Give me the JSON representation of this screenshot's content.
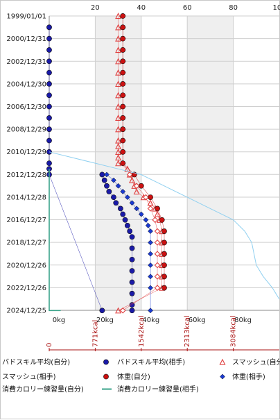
{
  "chart_data": {
    "type": "scatter",
    "title": "",
    "orientation": "dates-on-vertical-axis",
    "y_dates": [
      "1999/01/01",
      "2000/12/31",
      "2002/12/31",
      "2004/12/30",
      "2006/12/30",
      "2008/12/29",
      "2010/12/29",
      "2012/12/28",
      "2014/12/28",
      "2016/12/27",
      "2018/12/27",
      "2020/12/26",
      "2022/12/26",
      "2024/12/25"
    ],
    "top_axis": {
      "ticks": [
        "20",
        "40",
        "60",
        "80",
        "100"
      ],
      "range": [
        0,
        100
      ]
    },
    "kg_axis": {
      "ticks": [
        "0kg",
        "20kg",
        "40kg",
        "60kg",
        "80kg"
      ],
      "range": [
        0,
        100
      ]
    },
    "kcal_axis": {
      "ticks": [
        "0",
        "771kcal",
        "1542kcal",
        "2313kcal",
        "3084kcal"
      ]
    },
    "shaded_bands": [
      [
        20,
        40
      ],
      [
        60,
        80
      ]
    ],
    "series": [
      {
        "name": "バドスキル平均(自分)",
        "marker": "circle",
        "color": "#1a1aa8",
        "points": [
          [
            0,
            "2000/01"
          ],
          [
            0,
            "2001/01"
          ],
          [
            0,
            "2002/01"
          ],
          [
            0,
            "2003/01"
          ],
          [
            0,
            "2004/01"
          ],
          [
            0,
            "2005/01"
          ],
          [
            0,
            "2006/01"
          ],
          [
            0,
            "2007/01"
          ],
          [
            0,
            "2008/01"
          ],
          [
            0,
            "2009/01"
          ],
          [
            0,
            "2010/01"
          ],
          [
            0,
            "2011/01"
          ],
          [
            0,
            "2012/01"
          ],
          [
            0,
            "2012/07"
          ],
          [
            0,
            "2013/01"
          ],
          [
            23,
            "2025/01"
          ]
        ]
      },
      {
        "name": "バドスキル平均(相手)",
        "marker": "circle",
        "color": "#1a1aa8",
        "points": [
          [
            23,
            "2013/01"
          ],
          [
            24,
            "2013/07"
          ],
          [
            25,
            "2014/01"
          ],
          [
            26,
            "2014/07"
          ],
          [
            28,
            "2015/01"
          ],
          [
            29,
            "2015/07"
          ],
          [
            31,
            "2016/01"
          ],
          [
            32,
            "2016/07"
          ],
          [
            33,
            "2017/01"
          ],
          [
            34,
            "2017/07"
          ],
          [
            35,
            "2018/01"
          ],
          [
            36,
            "2018/07"
          ],
          [
            36,
            "2019/07"
          ],
          [
            36,
            "2020/07"
          ],
          [
            36,
            "2021/07"
          ],
          [
            36,
            "2022/07"
          ],
          [
            36,
            "2023/07"
          ],
          [
            36,
            "2024/07"
          ],
          [
            36,
            "2025/01"
          ]
        ]
      },
      {
        "name": "スマッシュ(自分)",
        "marker": "triangle",
        "color": "#e04040",
        "points": [
          [
            30,
            "1999/01"
          ],
          [
            30,
            "2000/01"
          ],
          [
            30,
            "2001/01"
          ],
          [
            30,
            "2002/01"
          ],
          [
            30,
            "2003/01"
          ],
          [
            30,
            "2004/01"
          ],
          [
            30,
            "2005/01"
          ],
          [
            30,
            "2006/01"
          ],
          [
            30,
            "2007/01"
          ],
          [
            30,
            "2008/01"
          ],
          [
            30,
            "2009/01"
          ],
          [
            30,
            "2010/01"
          ],
          [
            30,
            "2010/07"
          ],
          [
            30,
            "2011/01"
          ],
          [
            30,
            "2011/07"
          ],
          [
            30,
            "2012/01"
          ],
          [
            34,
            "2012/07"
          ],
          [
            35,
            "2013/01"
          ],
          [
            36,
            "2013/07"
          ],
          [
            37,
            "2014/01"
          ],
          [
            38,
            "2014/07"
          ],
          [
            41,
            "2015/01"
          ],
          [
            44,
            "2015/07"
          ],
          [
            46,
            "2016/01"
          ],
          [
            47,
            "2016/07"
          ],
          [
            48,
            "2017/01"
          ],
          [
            49,
            "2018/01"
          ],
          [
            49,
            "2019/01"
          ],
          [
            49,
            "2020/01"
          ],
          [
            49,
            "2021/01"
          ],
          [
            49,
            "2022/01"
          ],
          [
            49,
            "2023/01"
          ],
          [
            30,
            "2025/01"
          ]
        ]
      },
      {
        "name": "スマッシュ(相手)",
        "marker": "diamond-open",
        "color": "#e04040",
        "points": [
          [
            32,
            "1999/01"
          ],
          [
            32,
            "2000/01"
          ],
          [
            32,
            "2001/01"
          ],
          [
            32,
            "2002/01"
          ],
          [
            32,
            "2003/01"
          ],
          [
            32,
            "2004/01"
          ],
          [
            32,
            "2005/01"
          ],
          [
            32,
            "2006/01"
          ],
          [
            32,
            "2007/01"
          ],
          [
            32,
            "2008/01"
          ],
          [
            32,
            "2009/01"
          ],
          [
            32,
            "2010/01"
          ],
          [
            32,
            "2011/01"
          ],
          [
            32,
            "2012/01"
          ],
          [
            35,
            "2013/01"
          ],
          [
            38,
            "2014/01"
          ],
          [
            42,
            "2015/01"
          ],
          [
            44,
            "2016/01"
          ],
          [
            46,
            "2017/01"
          ],
          [
            47,
            "2018/01"
          ],
          [
            47,
            "2019/01"
          ],
          [
            47,
            "2020/01"
          ],
          [
            47,
            "2021/01"
          ],
          [
            47,
            "2022/01"
          ],
          [
            47,
            "2023/01"
          ],
          [
            32,
            "2025/01"
          ]
        ]
      },
      {
        "name": "体重(自分)",
        "marker": "circle",
        "color": "#cc1111",
        "points": [
          [
            32,
            "1999/01"
          ],
          [
            32,
            "2000/01"
          ],
          [
            32,
            "2001/01"
          ],
          [
            32,
            "2002/01"
          ],
          [
            32,
            "2003/01"
          ],
          [
            32,
            "2004/01"
          ],
          [
            32,
            "2005/01"
          ],
          [
            32,
            "2006/01"
          ],
          [
            32,
            "2007/01"
          ],
          [
            32,
            "2008/01"
          ],
          [
            32,
            "2009/01"
          ],
          [
            32,
            "2010/01"
          ],
          [
            32,
            "2011/01"
          ],
          [
            32,
            "2012/01"
          ],
          [
            37,
            "2013/01"
          ],
          [
            40,
            "2014/01"
          ],
          [
            44,
            "2015/01"
          ],
          [
            47,
            "2016/01"
          ],
          [
            49,
            "2017/01"
          ],
          [
            50,
            "2018/01"
          ],
          [
            50,
            "2019/01"
          ],
          [
            50,
            "2020/01"
          ],
          [
            50,
            "2021/01"
          ],
          [
            50,
            "2022/01"
          ],
          [
            50,
            "2023/01"
          ]
        ]
      },
      {
        "name": "体重(相手)",
        "marker": "diamond",
        "color": "#1a3ad0",
        "points": [
          [
            25,
            "2013/01"
          ],
          [
            28,
            "2013/07"
          ],
          [
            30,
            "2014/01"
          ],
          [
            32,
            "2014/07"
          ],
          [
            34,
            "2015/01"
          ],
          [
            36,
            "2015/07"
          ],
          [
            38,
            "2016/01"
          ],
          [
            40,
            "2016/07"
          ],
          [
            42,
            "2017/01"
          ],
          [
            43,
            "2017/07"
          ],
          [
            44,
            "2018/01"
          ],
          [
            44,
            "2019/01"
          ],
          [
            44,
            "2020/01"
          ],
          [
            44,
            "2021/01"
          ],
          [
            44,
            "2022/01"
          ],
          [
            44,
            "2023/01"
          ],
          [
            44,
            "2025/01"
          ]
        ]
      },
      {
        "name": "消費カロリー練習量(自分)",
        "marker": "line",
        "color": "#90d0f0",
        "points": [
          [
            0,
            "2011/01"
          ],
          [
            10,
            "2011/07"
          ],
          [
            20,
            "2012/01"
          ],
          [
            30,
            "2012/07"
          ],
          [
            40,
            "2013/01"
          ],
          [
            50,
            "2014/01"
          ],
          [
            60,
            "2015/01"
          ],
          [
            70,
            "2016/01"
          ],
          [
            80,
            "2017/01"
          ],
          [
            85,
            "2018/01"
          ],
          [
            88,
            "2019/01"
          ],
          [
            90,
            "2021/01"
          ],
          [
            93,
            "2022/01"
          ],
          [
            97,
            "2023/01"
          ],
          [
            100,
            "2024/01"
          ]
        ]
      },
      {
        "name": "消費カロリー練習量(相手)",
        "marker": "line",
        "color": "#3aa38a",
        "points": [
          [
            0,
            "2012/07"
          ],
          [
            0,
            "2013/01"
          ],
          [
            0,
            "2016/01"
          ],
          [
            0,
            "2020/01"
          ],
          [
            0,
            "2025/01"
          ],
          [
            5,
            "2025/01"
          ]
        ]
      }
    ],
    "legend": {
      "placement": "bottom",
      "entries": [
        "バドスキル平均(自分)",
        "バドスキル平均(相手)",
        "スマッシュ(自分)",
        "スマッシュ(相手)",
        "体重(自分)",
        "体重(相手)",
        "消費カロリー練習量(自分)",
        "消費カロリー練習量(相手)"
      ]
    }
  }
}
